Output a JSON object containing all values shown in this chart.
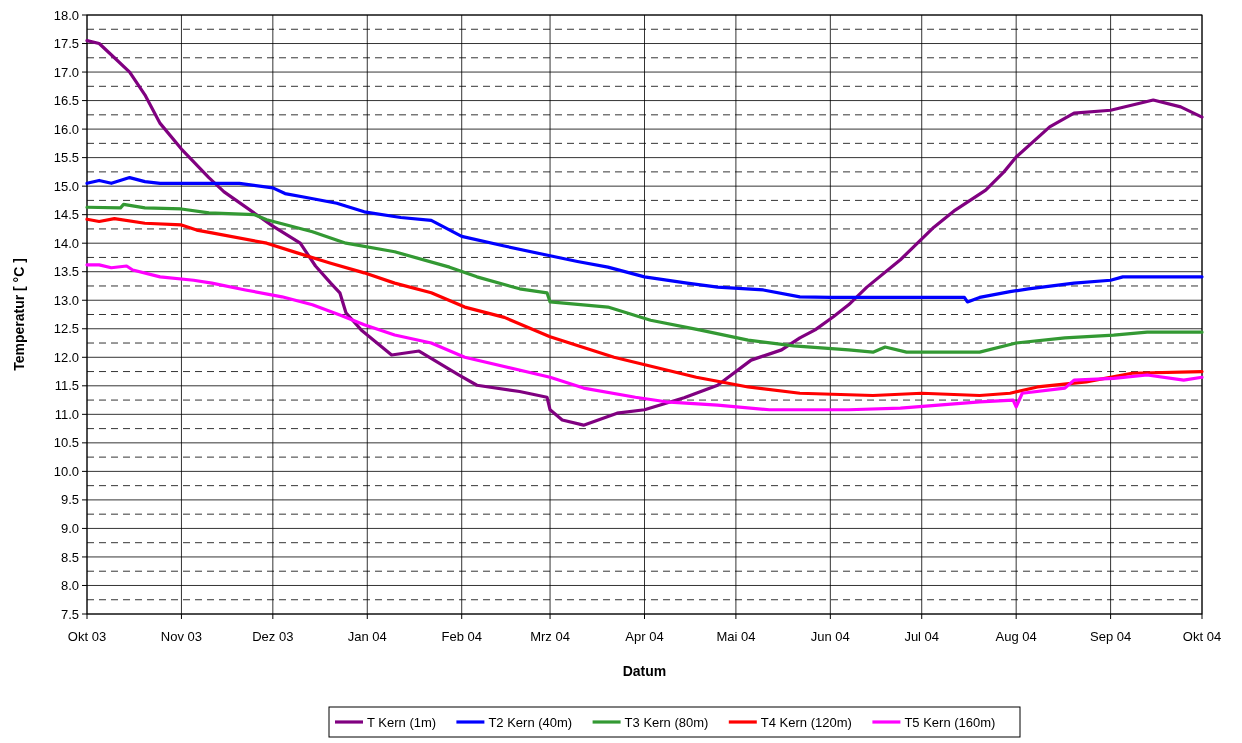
{
  "chart_data": {
    "type": "line",
    "xlabel": "Datum",
    "ylabel": "Temperatur [ °C ]",
    "ylim": [
      7.5,
      18
    ],
    "yticks": [
      7.5,
      {
        "value": 8,
        "label": "8.0"
      },
      8.5,
      {
        "value": 9,
        "label": "9.0"
      },
      9.5,
      {
        "value": 10,
        "label": "10.0"
      },
      10.5,
      {
        "value": 11,
        "label": "11.0"
      },
      11.5,
      {
        "value": 12,
        "label": "12.0"
      },
      12.5,
      {
        "value": 13,
        "label": "13.0"
      },
      13.5,
      {
        "value": 14,
        "label": "14.0"
      },
      14.5,
      {
        "value": 15,
        "label": "15.0"
      },
      15.5,
      {
        "value": 16,
        "label": "16.0"
      },
      16.5,
      {
        "value": 17,
        "label": "17.0"
      },
      17.5,
      {
        "value": 18,
        "label": "18.0"
      }
    ],
    "xlim": [
      "2003-10-01",
      "2004-10-01"
    ],
    "xticks": [
      {
        "value": "2003-10-01",
        "label": "Okt 03"
      },
      {
        "value": "2003-11-01",
        "label": "Nov 03"
      },
      {
        "value": "2003-12-01",
        "label": "Dez 03"
      },
      {
        "value": "2004-01-01",
        "label": "Jan 04"
      },
      {
        "value": "2004-02-01",
        "label": "Feb 04"
      },
      {
        "value": "2004-03-01",
        "label": "Mrz 04"
      },
      {
        "value": "2004-04-01",
        "label": "Apr 04"
      },
      {
        "value": "2004-05-01",
        "label": "Mai 04"
      },
      {
        "value": "2004-06-01",
        "label": "Jun 04"
      },
      {
        "value": "2004-07-01",
        "label": "Jul 04"
      },
      {
        "value": "2004-08-01",
        "label": "Aug 04"
      },
      {
        "value": "2004-09-01",
        "label": "Sep 04"
      },
      {
        "value": "2004-10-01",
        "label": "Okt 04"
      }
    ],
    "grid": true,
    "legend": "bottom",
    "line_style": "solid",
    "marker": "none",
    "series": [
      {
        "name": "T Kern (1m)",
        "color": "#800080",
        "x": [
          "2003-10-01",
          "2003-10-05",
          "2003-10-10",
          "2003-10-15",
          "2003-10-20",
          "2003-10-25",
          "2003-11-01",
          "2003-11-10",
          "2003-11-15",
          "2003-12-01",
          "2003-12-10",
          "2003-12-15",
          "2003-12-20",
          "2003-12-23",
          "2003-12-25",
          "2003-12-30",
          "2004-01-09",
          "2004-01-18",
          "2004-01-31",
          "2004-02-06",
          "2004-02-20",
          "2004-02-29",
          "2004-03-01",
          "2004-03-05",
          "2004-03-12",
          "2004-03-23",
          "2004-04-01",
          "2004-04-14",
          "2004-04-25",
          "2004-05-06",
          "2004-05-16",
          "2004-05-22",
          "2004-05-27",
          "2004-06-02",
          "2004-06-07",
          "2004-06-13",
          "2004-06-24",
          "2004-07-05",
          "2004-07-12",
          "2004-07-22",
          "2004-07-28",
          "2004-08-01",
          "2004-08-12",
          "2004-08-20",
          "2004-09-01",
          "2004-09-15",
          "2004-09-24",
          "2004-10-01"
        ],
        "values": [
          17.55,
          17.5,
          17.25,
          17.0,
          16.6,
          16.1,
          15.65,
          15.15,
          14.9,
          14.3,
          14.0,
          13.6,
          13.3,
          13.13,
          12.78,
          12.48,
          12.04,
          12.11,
          11.69,
          11.51,
          11.4,
          11.3,
          11.08,
          10.9,
          10.81,
          11.02,
          11.08,
          11.29,
          11.51,
          11.95,
          12.13,
          12.34,
          12.48,
          12.71,
          12.92,
          13.23,
          13.71,
          14.28,
          14.58,
          14.93,
          15.25,
          15.51,
          16.04,
          16.28,
          16.33,
          16.51,
          16.39,
          16.21
        ]
      },
      {
        "name": "T2 Kern (40m)",
        "color": "#0000ff",
        "x": [
          "2003-10-01",
          "2003-10-05",
          "2003-10-09",
          "2003-10-15",
          "2003-10-20",
          "2003-10-25",
          "2003-11-20",
          "2003-12-01",
          "2003-12-05",
          "2003-12-12",
          "2003-12-22",
          "2003-12-31",
          "2004-01-12",
          "2004-01-22",
          "2004-02-01",
          "2004-02-15",
          "2004-03-01",
          "2004-03-10",
          "2004-03-20",
          "2004-04-01",
          "2004-04-15",
          "2004-04-25",
          "2004-05-10",
          "2004-05-22",
          "2004-06-01",
          "2004-07-15",
          "2004-07-16",
          "2004-07-20",
          "2004-07-30",
          "2004-08-05",
          "2004-08-20",
          "2004-09-01",
          "2004-09-05",
          "2004-10-01"
        ],
        "values": [
          15.05,
          15.1,
          15.05,
          15.15,
          15.08,
          15.05,
          15.05,
          14.97,
          14.87,
          14.8,
          14.7,
          14.55,
          14.45,
          14.4,
          14.12,
          13.95,
          13.78,
          13.68,
          13.58,
          13.41,
          13.3,
          13.23,
          13.18,
          13.06,
          13.05,
          13.05,
          12.97,
          13.05,
          13.15,
          13.2,
          13.3,
          13.35,
          13.41,
          13.41
        ]
      },
      {
        "name": "T3 Kern (80m)",
        "color": "#339933",
        "x": [
          "2003-10-01",
          "2003-10-12",
          "2003-10-13",
          "2003-10-20",
          "2003-11-01",
          "2003-11-10",
          "2003-11-25",
          "2003-11-29",
          "2003-12-14",
          "2003-12-25",
          "2004-01-10",
          "2004-01-28",
          "2004-02-06",
          "2004-02-20",
          "2004-02-29",
          "2004-03-01",
          "2004-03-20",
          "2004-04-03",
          "2004-04-19",
          "2004-05-05",
          "2004-05-20",
          "2004-06-07",
          "2004-06-15",
          "2004-06-19",
          "2004-06-26",
          "2004-07-20",
          "2004-08-01",
          "2004-08-17",
          "2004-09-02",
          "2004-09-13",
          "2004-10-01"
        ],
        "values": [
          14.63,
          14.62,
          14.68,
          14.62,
          14.6,
          14.53,
          14.5,
          14.41,
          14.2,
          14.0,
          13.85,
          13.58,
          13.41,
          13.2,
          13.13,
          12.97,
          12.88,
          12.65,
          12.48,
          12.3,
          12.2,
          12.13,
          12.09,
          12.18,
          12.09,
          12.09,
          12.25,
          12.34,
          12.39,
          12.44,
          12.44
        ]
      },
      {
        "name": "T4 Kern (120m)",
        "color": "#ff0000",
        "x": [
          "2003-10-01",
          "2003-10-05",
          "2003-10-10",
          "2003-10-20",
          "2003-11-01",
          "2003-11-06",
          "2003-11-11",
          "2003-11-29",
          "2003-12-09",
          "2003-12-20",
          "2003-12-31",
          "2004-01-10",
          "2004-01-22",
          "2004-02-02",
          "2004-02-15",
          "2004-03-01",
          "2004-03-22",
          "2004-04-18",
          "2004-05-05",
          "2004-05-22",
          "2004-06-15",
          "2004-07-01",
          "2004-07-20",
          "2004-07-30",
          "2004-08-08",
          "2004-08-24",
          "2004-09-08",
          "2004-10-01"
        ],
        "values": [
          14.42,
          14.38,
          14.43,
          14.35,
          14.32,
          14.23,
          14.18,
          14.0,
          13.83,
          13.65,
          13.48,
          13.3,
          13.13,
          12.88,
          12.7,
          12.36,
          12.0,
          11.65,
          11.48,
          11.37,
          11.33,
          11.37,
          11.33,
          11.37,
          11.48,
          11.57,
          11.72,
          11.75
        ]
      },
      {
        "name": "T5 Kern (160m)",
        "color": "#ff00ff",
        "x": [
          "2003-10-01",
          "2003-10-05",
          "2003-10-09",
          "2003-10-14",
          "2003-10-16",
          "2003-10-25",
          "2003-11-05",
          "2003-11-11",
          "2003-11-22",
          "2003-12-04",
          "2003-12-14",
          "2003-12-23",
          "2003-12-31",
          "2004-01-10",
          "2004-01-22",
          "2004-02-02",
          "2004-03-01",
          "2004-03-12",
          "2004-03-29",
          "2004-04-08",
          "2004-04-25",
          "2004-05-12",
          "2004-06-07",
          "2004-06-24",
          "2004-07-20",
          "2004-07-31",
          "2004-08-01",
          "2004-08-03",
          "2004-08-17",
          "2004-08-20",
          "2004-09-02",
          "2004-09-13",
          "2004-09-25",
          "2004-10-01"
        ],
        "values": [
          13.62,
          13.62,
          13.57,
          13.6,
          13.53,
          13.41,
          13.35,
          13.3,
          13.18,
          13.06,
          12.92,
          12.74,
          12.57,
          12.39,
          12.25,
          12.0,
          11.65,
          11.46,
          11.3,
          11.22,
          11.16,
          11.08,
          11.08,
          11.11,
          11.22,
          11.25,
          11.13,
          11.37,
          11.46,
          11.6,
          11.63,
          11.69,
          11.6,
          11.65
        ]
      }
    ]
  }
}
